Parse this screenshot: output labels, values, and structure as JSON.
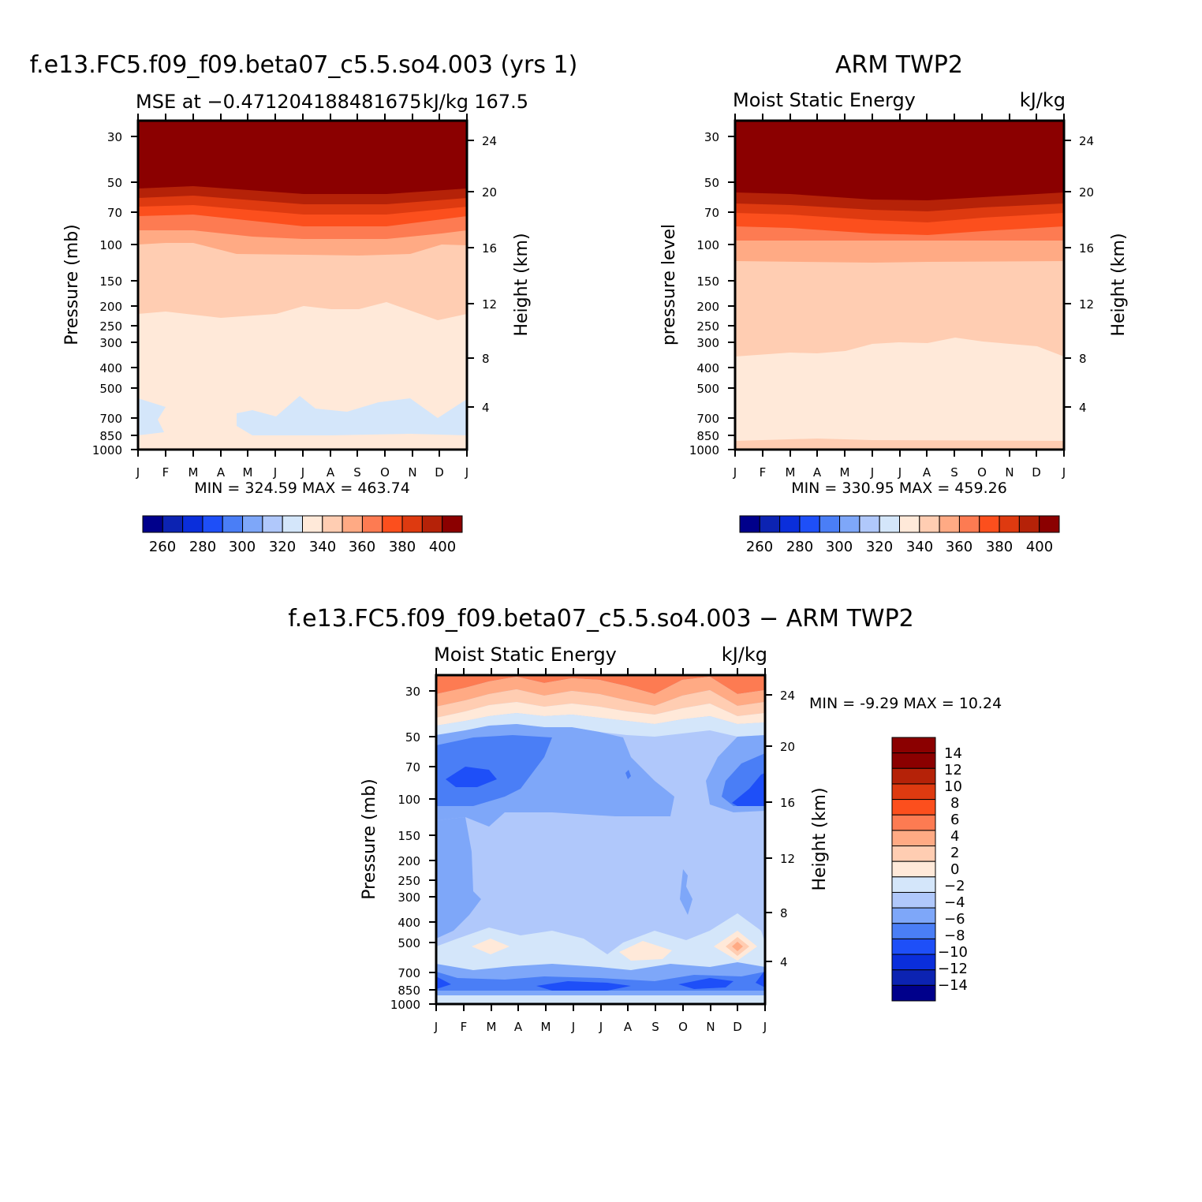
{
  "colors": {
    "palette_16": [
      "#00008b",
      "#0c23b2",
      "#0a2edb",
      "#1e4ff8",
      "#4a7ef6",
      "#7ea7f9",
      "#b0c8fb",
      "#d4e6fa",
      "#ffe9d9",
      "#ffcdb2",
      "#ffaa84",
      "#fd7b52",
      "#fc4f1d",
      "#de3a10",
      "#b52208",
      "#8b0000"
    ],
    "palette_diff_17": [
      "#00008b",
      "#0c23b2",
      "#0a2edb",
      "#1e4ff8",
      "#4a7ef6",
      "#7ea7f9",
      "#b0c8fb",
      "#d4e6fa",
      "#ffe9d9",
      "#ffcdb2",
      "#ffaa84",
      "#fd7b52",
      "#fc4f1d",
      "#de3a10",
      "#b52208",
      "#8b0000",
      "#8b0000"
    ]
  },
  "panels": [
    {
      "id": "model",
      "main_title": "f.e13.FC5.f09_f09.beta07_c5.5.so4.003 (yrs 1)",
      "left_subtitle": "MSE at −0.471204188481675",
      "right_subtitle": "kJ/kg",
      "right_subtitle_2": "167.5",
      "ylabel": "Pressure (mb)",
      "y2label": "Height (km)",
      "stats": "MIN = 324.59 MAX = 463.74",
      "colorbar_labels": [
        "260",
        "280",
        "300",
        "320",
        "340",
        "360",
        "380",
        "400"
      ]
    },
    {
      "id": "obs",
      "main_title": "ARM TWP2",
      "left_subtitle": "Moist Static Energy",
      "right_subtitle": "kJ/kg",
      "ylabel": "pressure level",
      "y2label": "Height (km)",
      "stats": "MIN = 330.95 MAX = 459.26",
      "colorbar_labels": [
        "260",
        "280",
        "300",
        "320",
        "340",
        "360",
        "380",
        "400"
      ]
    },
    {
      "id": "diff",
      "main_title": "f.e13.FC5.f09_f09.beta07_c5.5.so4.003 − ARM TWP2",
      "left_subtitle": "Moist Static Energy",
      "right_subtitle": "kJ/kg",
      "ylabel": "Pressure (mb)",
      "y2label": "Height (km)",
      "stats": "MIN = -9.29 MAX = 10.24",
      "colorbar_labels": [
        "14",
        "12",
        "10",
        "8",
        "6",
        "4",
        "2",
        "0",
        "−2",
        "−4",
        "−6",
        "−8",
        "−10",
        "−12",
        "−14"
      ]
    }
  ],
  "chart_data": [
    {
      "type": "heatmap",
      "title": "f.e13.FC5.f09_f09.beta07_c5.5.so4.003 (yrs 1)",
      "xlabel": "",
      "ylabel": "Pressure (mb)",
      "y2label": "Height (km)",
      "x": [
        "J",
        "F",
        "M",
        "A",
        "M",
        "J",
        "J",
        "A",
        "S",
        "O",
        "N",
        "D",
        "J"
      ],
      "y_ticks": [
        30,
        50,
        70,
        100,
        150,
        200,
        250,
        300,
        400,
        500,
        700,
        850,
        1000
      ],
      "y2_ticks": [
        24,
        20,
        16,
        12,
        8,
        4
      ],
      "levels": [
        260,
        270,
        280,
        290,
        300,
        310,
        320,
        330,
        340,
        350,
        360,
        370,
        380,
        390,
        400
      ],
      "y_scale": "log",
      "min": 324.59,
      "max": 463.74
    },
    {
      "type": "heatmap",
      "title": "ARM TWP2",
      "xlabel": "",
      "ylabel": "pressure level",
      "y2label": "Height (km)",
      "x": [
        "J",
        "F",
        "M",
        "A",
        "M",
        "J",
        "J",
        "A",
        "S",
        "O",
        "N",
        "D",
        "J"
      ],
      "y_ticks": [
        30,
        50,
        70,
        100,
        150,
        200,
        250,
        300,
        400,
        500,
        700,
        850,
        1000
      ],
      "y2_ticks": [
        24,
        20,
        16,
        12,
        8,
        4
      ],
      "levels": [
        260,
        270,
        280,
        290,
        300,
        310,
        320,
        330,
        340,
        350,
        360,
        370,
        380,
        390,
        400
      ],
      "y_scale": "log",
      "min": 330.95,
      "max": 459.26
    },
    {
      "type": "heatmap",
      "title": "f.e13.FC5.f09_f09.beta07_c5.5.so4.003 − ARM TWP2",
      "xlabel": "",
      "ylabel": "Pressure (mb)",
      "y2label": "Height (km)",
      "x": [
        "J",
        "F",
        "M",
        "A",
        "M",
        "J",
        "J",
        "A",
        "S",
        "O",
        "N",
        "D",
        "J"
      ],
      "y_ticks": [
        30,
        50,
        70,
        100,
        150,
        200,
        250,
        300,
        400,
        500,
        700,
        850,
        1000
      ],
      "y2_ticks": [
        24,
        20,
        16,
        12,
        8,
        4
      ],
      "levels": [
        -14,
        -12,
        -10,
        -8,
        -6,
        -4,
        -2,
        0,
        2,
        4,
        6,
        8,
        10,
        12,
        14
      ],
      "y_scale": "log",
      "min": -9.29,
      "max": 10.24
    }
  ]
}
